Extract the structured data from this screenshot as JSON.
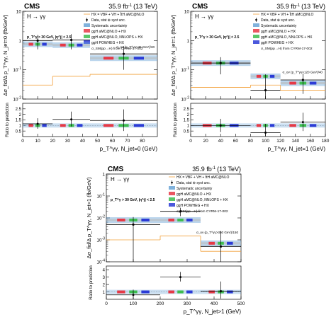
{
  "figure": {
    "experiment": "CMS",
    "luminosity": "35.9 fb",
    "lumi_exp": "-1",
    "energy": "(13 TeV)",
    "process": "H → γγ",
    "legend": {
      "data": "Data, stat ⊕ syst unc.",
      "hx": "HX = VBF + VH + t̄tH aMC@NLO",
      "syst": "Systematic uncertainty",
      "amcnlo": "ggH aMC@NLO + HX",
      "nnlops": "ggH aMC@NLO, NNLOPS + HX",
      "powheg": "ggH POWHEG + HX",
      "sigma": "σ_SM(pp→H) from CYRM-17-002"
    },
    "colors": {
      "data": "#000000",
      "hx": "#f2a03a",
      "syst": "#6aa4d6",
      "amcnlo": "#e63946",
      "nnlops": "#3dbd4f",
      "powheg": "#2b3bd6",
      "sigma_band": "#bbbbbb"
    }
  },
  "chart_data": [
    {
      "type": "line",
      "id": "njet0",
      "selection": "p_T^γ > 30 GeV, |η^j| < 2.5",
      "ylabel_top": "Δσ_fid/Δ p_T^γγ, N_jet=0 (fb/GeV)",
      "ylabel_ratio": "Ratio to prediction",
      "xlabel": "p_T^γγ, N_jet=0 (GeV)",
      "overflow_note": "σ_ov (p_T^γγ>45 GeV)/30",
      "yscale": "log",
      "ylim": [
        0.01,
        10
      ],
      "ytick_labels": [
        "10^{-2}",
        "10^{-1}",
        "1",
        "10"
      ],
      "xlim": [
        0,
        90
      ],
      "xticks": [
        0,
        10,
        20,
        30,
        40,
        50,
        60,
        70,
        80
      ],
      "bins": [
        [
          0,
          20
        ],
        [
          20,
          45
        ],
        [
          45,
          90
        ]
      ],
      "data": [
        1.0,
        1.05,
        0.35
      ],
      "data_err_lo": [
        0.5,
        0.55,
        0.25
      ],
      "data_err_hi": [
        0.55,
        0.6,
        0.3
      ],
      "prediction": [
        0.75,
        0.7,
        0.25
      ],
      "hx": [
        0.03,
        0.06,
        0.07
      ],
      "ratio_ylim": [
        0,
        3
      ],
      "ratio_yticks": [
        0.5,
        1,
        1.5,
        2,
        2.5
      ],
      "ratio_data": [
        1.15,
        1.55,
        1.45
      ],
      "ratio_err_lo": [
        0.45,
        0.65,
        0.95
      ],
      "ratio_err_hi": [
        0.5,
        0.7,
        1.0
      ]
    },
    {
      "type": "line",
      "id": "njet1",
      "selection": "p_T^γ > 30 GeV, |η^j| < 2.5",
      "ylabel_top": "Δσ_fid/Δ p_T^γγ, N_jet=1 (fb/GeV)",
      "ylabel_ratio": "Ratio to prediction",
      "xlabel": "p_T^γγ, N_jet=1 (GeV)",
      "overflow_note": "σ_ov (p_T^γγ>120 GeV)/40",
      "yscale": "log",
      "ylim": [
        0.01,
        10
      ],
      "ytick_labels": [
        "10^{-2}",
        "10^{-1}",
        "1",
        "10"
      ],
      "xlim": [
        0,
        180
      ],
      "xticks": [
        0,
        20,
        40,
        60,
        80,
        100,
        120,
        140,
        160,
        180
      ],
      "bins": [
        [
          0,
          80
        ],
        [
          80,
          120
        ],
        [
          120,
          180
        ]
      ],
      "data": [
        0.17,
        0.02,
        0.045
      ],
      "data_err_lo": [
        0.1,
        0.017,
        0.03
      ],
      "data_err_hi": [
        0.1,
        0.05,
        0.03
      ],
      "prediction": [
        0.17,
        0.06,
        0.035
      ],
      "hx": [
        0.025,
        0.03,
        0.02
      ],
      "ratio_ylim": [
        0,
        3
      ],
      "ratio_yticks": [
        0.5,
        1,
        1.5,
        2,
        2.5
      ],
      "ratio_data": [
        1.0,
        0.35,
        1.3
      ],
      "ratio_err_lo": [
        0.6,
        0.3,
        0.8
      ],
      "ratio_err_hi": [
        0.6,
        0.8,
        0.85
      ]
    },
    {
      "type": "line",
      "id": "njetgt1",
      "selection": "p_T^γ > 30 GeV, |η^j| < 2.5",
      "ylabel_top": "Δσ_fid/Δ p_T^γγ, N_jet>1 (fb/GeV)",
      "ylabel_ratio": "Ratio to prediction",
      "xlabel": "p_T^γγ, N_jet>1 (GeV)",
      "overflow_note": "σ_ov (p_T^γγ>350 GeV)/150",
      "yscale": "log",
      "ylim": [
        0.0001,
        1
      ],
      "ytick_labels": [
        "10^{-4}",
        "10^{-3}",
        "10^{-2}",
        "10^{-1}",
        "1"
      ],
      "xlim": [
        0,
        500
      ],
      "xticks": [
        0,
        100,
        200,
        300,
        400,
        500
      ],
      "bins": [
        [
          0,
          200
        ],
        [
          200,
          350
        ],
        [
          350,
          500
        ]
      ],
      "data": [
        0.005,
        0.02,
        0.0005
      ],
      "data_err_lo": [
        0.0049,
        0.008,
        0.00045
      ],
      "data_err_hi": [
        0.006,
        0.009,
        0.002
      ],
      "prediction": [
        0.008,
        0.008,
        0.0007
      ],
      "hx": [
        0.001,
        0.0015,
        0.0003
      ],
      "ratio_ylim": [
        0,
        4.5
      ],
      "ratio_yticks": [
        1,
        2,
        3,
        4
      ],
      "ratio_data": [
        0.6,
        3.0,
        1.1
      ],
      "ratio_err_lo": [
        0.6,
        0.6,
        1.0
      ],
      "ratio_err_hi": [
        0.7,
        0.7,
        1.3
      ]
    }
  ]
}
